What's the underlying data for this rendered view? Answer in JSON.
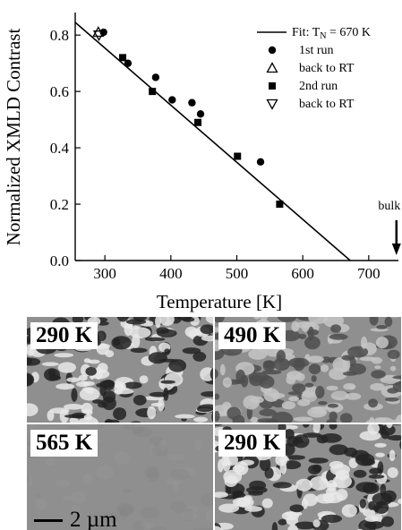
{
  "chart_data": {
    "type": "scatter",
    "xlabel": "Temperature [K]",
    "ylabel": "Normalized XMLD Contrast",
    "xlim": [
      255,
      745
    ],
    "ylim": [
      0,
      0.88
    ],
    "x_ticks": [
      "300",
      "400",
      "500",
      "600",
      "700"
    ],
    "x_tick_values": [
      300,
      400,
      500,
      600,
      700
    ],
    "y_ticks": [
      "0.0",
      "0.2",
      "0.4",
      "0.6",
      "0.8"
    ],
    "y_tick_values": [
      0,
      0.2,
      0.4,
      0.6,
      0.8
    ],
    "legend_position": "top-right",
    "fit": {
      "label": "Fit: T",
      "label_sub": "N",
      "label_rest": " = 670 K",
      "points": [
        [
          255,
          0.845
        ],
        [
          672,
          0.0
        ]
      ]
    },
    "series": [
      {
        "name": "1st run",
        "marker": "circle",
        "points": [
          [
            298,
            0.81
          ],
          [
            335,
            0.7
          ],
          [
            377,
            0.65
          ],
          [
            402,
            0.57
          ],
          [
            432,
            0.56
          ],
          [
            445,
            0.52
          ],
          [
            536,
            0.35
          ]
        ]
      },
      {
        "name": "back to RT",
        "marker": "triangle-up",
        "points": [
          [
            290,
            0.81
          ]
        ]
      },
      {
        "name": "2nd run",
        "marker": "square",
        "points": [
          [
            327,
            0.72
          ],
          [
            372,
            0.6
          ],
          [
            441,
            0.49
          ],
          [
            501,
            0.37
          ],
          [
            565,
            0.2
          ]
        ]
      },
      {
        "name": "back to RT",
        "marker": "triangle-down",
        "points": [
          [
            291,
            0.8
          ]
        ]
      }
    ],
    "annotation": {
      "text": "bulk",
      "x": 742
    }
  },
  "images": [
    {
      "label": "290 K",
      "contrast": 0.9
    },
    {
      "label": "490 K",
      "contrast": 0.55
    },
    {
      "label": "565 K",
      "contrast": 0.1
    },
    {
      "label": "290 K",
      "contrast": 0.9
    }
  ],
  "scale_bar": "2 µm"
}
